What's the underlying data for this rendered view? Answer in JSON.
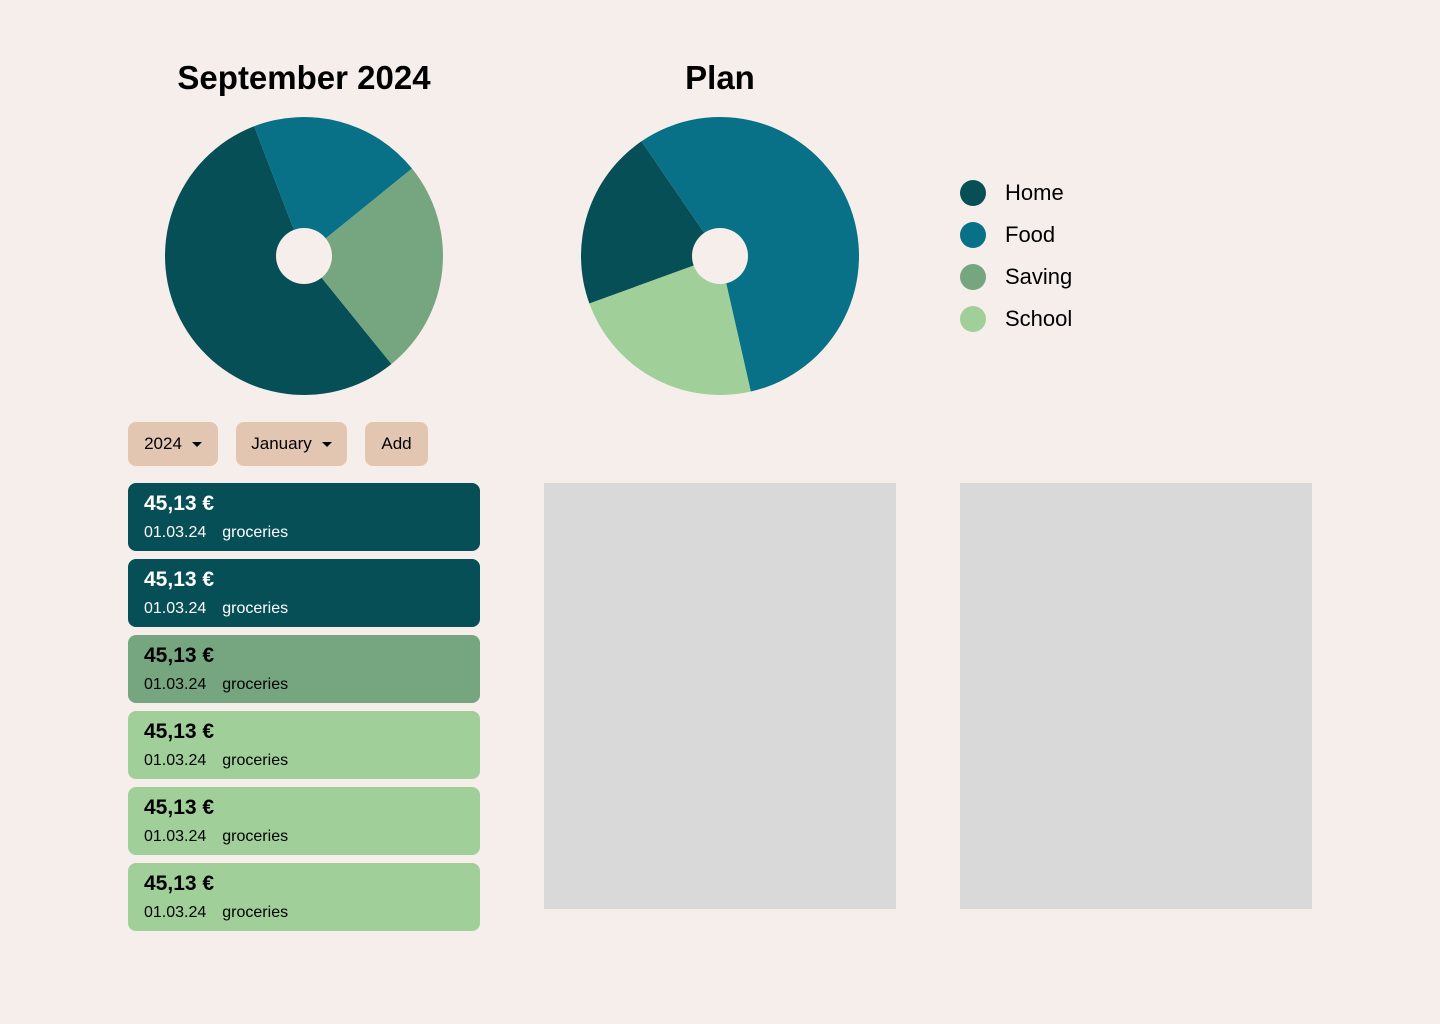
{
  "categories": [
    {
      "key": "home",
      "label": "Home",
      "color": "#064f57"
    },
    {
      "key": "food",
      "label": "Food",
      "color": "#087087"
    },
    {
      "key": "saving",
      "label": "Saving",
      "color": "#76a67f"
    },
    {
      "key": "school",
      "label": "School",
      "color": "#a0cf9a"
    }
  ],
  "chart_data": [
    {
      "type": "pie",
      "title": "September 2024",
      "slices": [
        {
          "category": "Home",
          "percent": 0.55
        },
        {
          "category": "Food",
          "percent": 0.2
        },
        {
          "category": "Saving",
          "percent": 0.25
        }
      ]
    },
    {
      "type": "pie",
      "title": "Plan",
      "slices": [
        {
          "category": "Home",
          "percent": 0.21
        },
        {
          "category": "Food",
          "percent": 0.56
        },
        {
          "category": "School",
          "percent": 0.23
        }
      ]
    }
  ],
  "controls": {
    "year": "2024",
    "month": "January",
    "add_label": "Add"
  },
  "transactions": [
    {
      "amount": "45,13 €",
      "date": "01.03.24",
      "note": "groceries",
      "category": "home"
    },
    {
      "amount": "45,13 €",
      "date": "01.03.24",
      "note": "groceries",
      "category": "home"
    },
    {
      "amount": "45,13 €",
      "date": "01.03.24",
      "note": "groceries",
      "category": "saving"
    },
    {
      "amount": "45,13 €",
      "date": "01.03.24",
      "note": "groceries",
      "category": "school"
    },
    {
      "amount": "45,13 €",
      "date": "01.03.24",
      "note": "groceries",
      "category": "school"
    },
    {
      "amount": "45,13 €",
      "date": "01.03.24",
      "note": "groceries",
      "category": "school"
    }
  ]
}
